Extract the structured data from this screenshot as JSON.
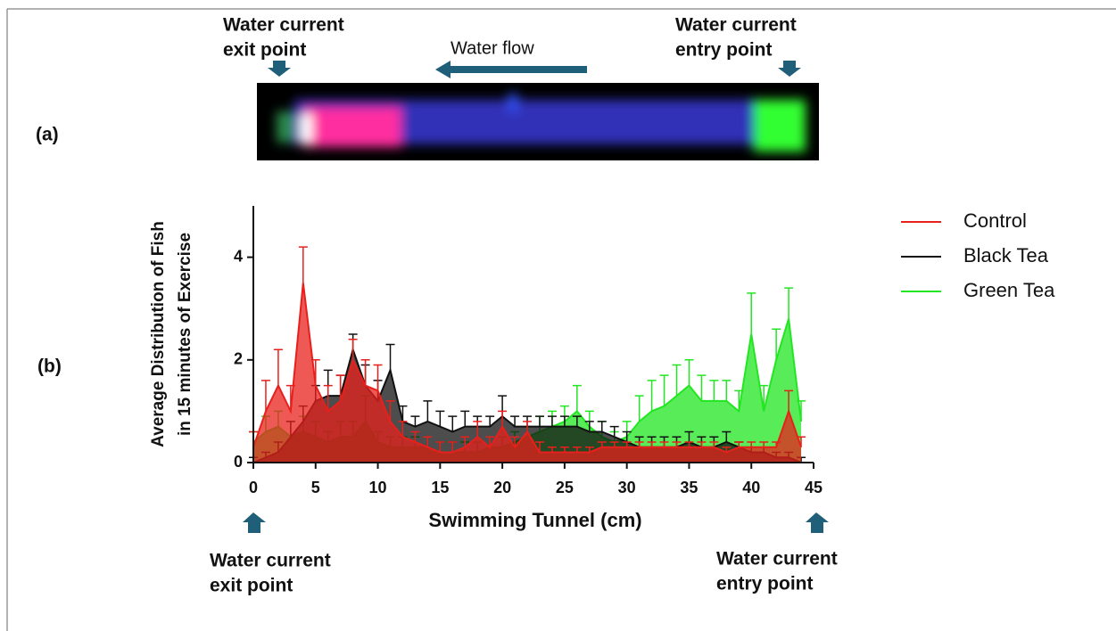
{
  "figure": {
    "panel_labels": [
      "(a)",
      "(b)"
    ],
    "top_exit": [
      "Water current",
      "exit point"
    ],
    "flow": "Water flow",
    "top_entry": [
      "Water current",
      "entry point"
    ],
    "bottom_exit": [
      "Water current",
      "exit point"
    ],
    "bottom_entry": [
      "Water current",
      "entry point"
    ]
  },
  "chart_data": {
    "type": "line",
    "ylabel": [
      "Average Distribution of Fish",
      "in 15 minutes of Exercise"
    ],
    "xlabel": "Swimming Tunnel (cm)",
    "x": [
      0,
      1,
      2,
      3,
      4,
      5,
      6,
      7,
      8,
      9,
      10,
      11,
      12,
      13,
      14,
      15,
      16,
      17,
      18,
      19,
      20,
      21,
      22,
      23,
      24,
      25,
      26,
      27,
      28,
      29,
      30,
      31,
      32,
      33,
      34,
      35,
      36,
      37,
      38,
      39,
      40,
      41,
      42,
      43,
      44
    ],
    "xlim": [
      0,
      45
    ],
    "xticks": [
      0,
      5,
      10,
      15,
      20,
      25,
      30,
      35,
      40,
      45
    ],
    "ylim": [
      0,
      5
    ],
    "yticks": [
      0,
      2,
      4
    ],
    "legend": "right",
    "series": [
      {
        "name": "Green Tea",
        "color": "#22e622",
        "values": [
          0.4,
          0.6,
          0.7,
          0.5,
          0.6,
          0.5,
          0.4,
          0.5,
          0.5,
          0.8,
          0.4,
          0.3,
          0.3,
          0.3,
          0.3,
          0.2,
          0.2,
          0.2,
          0.2,
          0.3,
          0.3,
          0.4,
          0.5,
          0.6,
          0.7,
          0.8,
          1.0,
          0.7,
          0.5,
          0.4,
          0.5,
          0.8,
          1.0,
          1.1,
          1.3,
          1.5,
          1.2,
          1.2,
          1.2,
          1.0,
          2.5,
          1.0,
          2.0,
          2.8,
          0.8
        ],
        "errors": [
          0.2,
          0.3,
          0.3,
          0.3,
          0.3,
          0.3,
          0.2,
          0.3,
          0.3,
          0.5,
          0.2,
          0.2,
          0.2,
          0.2,
          0.2,
          0.2,
          0.2,
          0.2,
          0.2,
          0.2,
          0.2,
          0.2,
          0.2,
          0.3,
          0.3,
          0.3,
          0.5,
          0.3,
          0.3,
          0.2,
          0.3,
          0.5,
          0.6,
          0.6,
          0.6,
          0.5,
          0.5,
          0.4,
          0.4,
          0.4,
          0.8,
          0.5,
          0.6,
          0.6,
          0.4
        ]
      },
      {
        "name": "Black Tea",
        "color": "#111111",
        "values": [
          0,
          0.1,
          0.2,
          0.5,
          0.8,
          1.2,
          1.3,
          1.3,
          2.2,
          1.5,
          1.2,
          1.8,
          0.8,
          0.7,
          0.8,
          0.7,
          0.6,
          0.7,
          0.7,
          0.7,
          0.9,
          0.7,
          0.7,
          0.7,
          0.7,
          0.7,
          0.7,
          0.6,
          0.6,
          0.5,
          0.4,
          0.3,
          0.3,
          0.3,
          0.3,
          0.4,
          0.3,
          0.3,
          0.4,
          0.3,
          0.2,
          0.2,
          0.1,
          0.1,
          0
        ],
        "errors": [
          0.1,
          0.1,
          0.2,
          0.3,
          0.3,
          0.3,
          0.5,
          0.4,
          0.3,
          0.4,
          0.4,
          0.5,
          0.3,
          0.2,
          0.4,
          0.3,
          0.3,
          0.3,
          0.2,
          0.2,
          0.4,
          0.2,
          0.2,
          0.2,
          0.2,
          0.2,
          0.2,
          0.2,
          0.2,
          0.2,
          0.2,
          0.2,
          0.2,
          0.2,
          0.2,
          0.2,
          0.2,
          0.2,
          0.2,
          0.1,
          0.1,
          0.1,
          0.1,
          0.1,
          0.1
        ]
      },
      {
        "name": "Control",
        "color": "#e8201c",
        "values": [
          0.3,
          1.0,
          1.5,
          1.0,
          3.5,
          1.5,
          1.0,
          1.2,
          2.0,
          1.5,
          1.4,
          0.8,
          0.5,
          0.4,
          0.3,
          0.2,
          0.2,
          0.3,
          0.5,
          0.3,
          0.7,
          0.3,
          0.6,
          0.2,
          0.2,
          0.2,
          0.2,
          0.2,
          0.3,
          0.3,
          0.3,
          0.3,
          0.3,
          0.3,
          0.3,
          0.3,
          0.3,
          0.3,
          0.2,
          0.3,
          0.3,
          0.3,
          0.3,
          1.0,
          0.3
        ],
        "errors": [
          0.3,
          0.6,
          0.7,
          0.5,
          0.7,
          0.5,
          0.5,
          0.5,
          0.4,
          0.5,
          0.5,
          0.4,
          0.3,
          0.2,
          0.2,
          0.2,
          0.2,
          0.2,
          0.3,
          0.2,
          0.3,
          0.2,
          0.2,
          0.2,
          0.1,
          0.1,
          0.1,
          0.1,
          0.1,
          0.1,
          0.1,
          0.1,
          0.1,
          0.1,
          0.1,
          0.1,
          0.1,
          0.1,
          0.1,
          0.1,
          0.1,
          0.1,
          0.1,
          0.4,
          0.2
        ]
      }
    ]
  }
}
